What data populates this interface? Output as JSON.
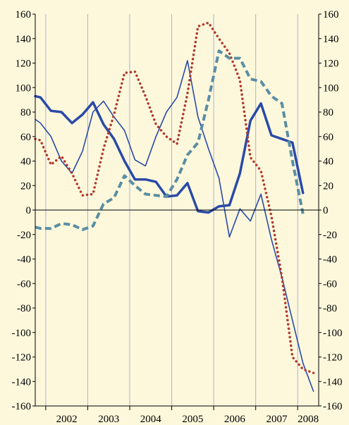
{
  "chart_data": {
    "type": "line",
    "title": "",
    "xlabel": "",
    "ylabel": "",
    "ylim": [
      -160,
      160
    ],
    "yticks": [
      160,
      140,
      120,
      100,
      80,
      60,
      40,
      20,
      0,
      -20,
      -40,
      -60,
      -80,
      -100,
      -120,
      -140,
      -160
    ],
    "y_tick_labels": [
      "160",
      "140",
      "120",
      "100",
      "80",
      "60",
      "40",
      "20",
      "0",
      "-20",
      "-40",
      "-60",
      "-80",
      "-100",
      "-120",
      "-140",
      "-160"
    ],
    "xlim": [
      2001.75,
      2008.5
    ],
    "year_boundaries": [
      2002,
      2003,
      2004,
      2005,
      2006,
      2007,
      2008
    ],
    "categories": [
      "2002",
      "2003",
      "2004",
      "2005",
      "2006",
      "2007",
      "2008"
    ],
    "grid": "vertical",
    "legend": "none",
    "axis_color": "#000000",
    "grid_color": "#aab0dd",
    "x": [
      2001.75,
      2001.875,
      2002.125,
      2002.375,
      2002.625,
      2002.875,
      2003.125,
      2003.375,
      2003.625,
      2003.875,
      2004.125,
      2004.375,
      2004.625,
      2004.875,
      2005.125,
      2005.375,
      2005.625,
      2005.875,
      2006.125,
      2006.375,
      2006.625,
      2006.875,
      2007.125,
      2007.375,
      2007.625,
      2007.875,
      2008.125,
      2008.375,
      2008.5
    ],
    "series": [
      {
        "style": "thick-solid",
        "color": "#2a4aa8",
        "values": [
          93,
          92,
          81,
          80,
          71,
          78,
          88,
          70,
          58,
          40,
          25,
          25,
          23,
          11,
          12,
          22,
          -1,
          -2,
          3,
          4,
          30,
          73,
          87,
          61,
          58,
          55,
          14,
          null,
          null
        ]
      },
      {
        "style": "thin-solid",
        "color": "#2a4aa8",
        "values": [
          74,
          71,
          60,
          40,
          30,
          48,
          80,
          89,
          76,
          65,
          41,
          36,
          60,
          80,
          92,
          122,
          76,
          50,
          26,
          -22,
          1,
          -9,
          13,
          -24,
          -55,
          -90,
          -125,
          -148,
          null
        ]
      },
      {
        "style": "dotted",
        "color": "#b03a2e",
        "values": [
          58,
          57,
          37,
          44,
          30,
          12,
          13,
          50,
          78,
          112,
          113,
          93,
          70,
          60,
          54,
          95,
          150,
          153,
          140,
          128,
          106,
          43,
          32,
          -5,
          -55,
          -120,
          -130,
          -133,
          null
        ]
      },
      {
        "style": "dashed",
        "color": "#5a8ea3",
        "values": [
          -14,
          -15,
          -15,
          -11,
          -12,
          -16,
          -13,
          5,
          10,
          28,
          20,
          13,
          12,
          11,
          25,
          45,
          55,
          90,
          130,
          124,
          124,
          107,
          105,
          93,
          87,
          40,
          -3,
          null,
          null
        ]
      }
    ]
  }
}
